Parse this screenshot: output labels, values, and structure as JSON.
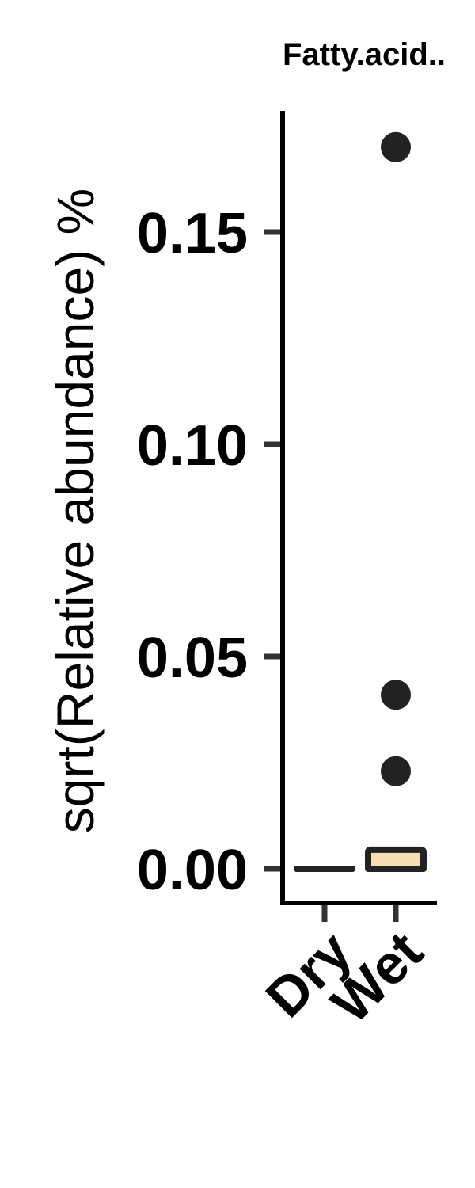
{
  "chart_data": {
    "type": "boxplot",
    "title": "Fatty.acid..",
    "ylabel": "sqrt(Relative abundance) %",
    "xlabel": "",
    "ylim": [
      -0.008,
      0.178
    ],
    "yticks": [
      0.0,
      0.05,
      0.1,
      0.15
    ],
    "ytick_labels": [
      "0.00",
      "0.05",
      "0.10",
      "0.15"
    ],
    "categories": [
      "Dry",
      "Wet"
    ],
    "grid": false,
    "legend": "none",
    "colors": {
      "box_fill_wet": "#f5deb3",
      "box_fill_dry": "#f5deb3",
      "outline": "#222222",
      "axis": "#000000"
    },
    "boxes": [
      {
        "category": "Dry",
        "min": 0.0,
        "q1": 0.0,
        "median": 0.0,
        "q3": 0.0,
        "max": 0.0,
        "outliers": []
      },
      {
        "category": "Wet",
        "min": 0.0,
        "q1": 0.0,
        "median": 0.0,
        "q3": 0.0045,
        "max": 0.0045,
        "outliers": [
          0.023,
          0.041,
          0.17
        ]
      }
    ]
  }
}
